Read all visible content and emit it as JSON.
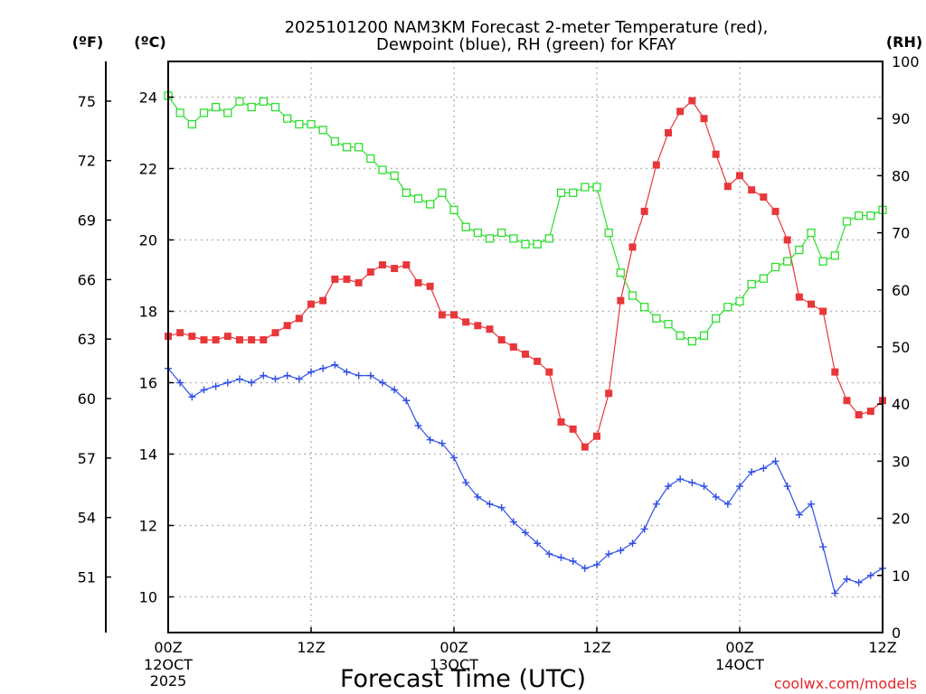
{
  "chart_data": {
    "type": "line",
    "title_line1": "2025101200 NAM3KM Forecast 2-meter Temperature (red),",
    "title_line2": "Dewpoint (blue), RH (green) for KFAY",
    "xlabel": "Forecast Time (UTC)",
    "credit": "coolwx.com/models",
    "units": {
      "fahrenheit": "(ºF)",
      "celsius": "(ºC)",
      "rh": "(RH)"
    },
    "x_unit": "forecast hour",
    "xlim": [
      0,
      60
    ],
    "celsius_ylim": [
      9,
      25
    ],
    "rh_ylim": [
      0,
      100
    ],
    "grid": true,
    "x_ticks": [
      {
        "hour": 0,
        "label": "00Z",
        "sub1": "12OCT",
        "sub2": "2025"
      },
      {
        "hour": 12,
        "label": "12Z",
        "sub1": "",
        "sub2": ""
      },
      {
        "hour": 24,
        "label": "00Z",
        "sub1": "13OCT",
        "sub2": ""
      },
      {
        "hour": 36,
        "label": "12Z",
        "sub1": "",
        "sub2": ""
      },
      {
        "hour": 48,
        "label": "00Z",
        "sub1": "14OCT",
        "sub2": ""
      },
      {
        "hour": 60,
        "label": "12Z",
        "sub1": "",
        "sub2": ""
      }
    ],
    "celsius_ticks": [
      "10",
      "12",
      "14",
      "16",
      "18",
      "20",
      "22",
      "24"
    ],
    "fahrenheit_ticks": [
      "51",
      "54",
      "57",
      "60",
      "63",
      "66",
      "69",
      "72",
      "75"
    ],
    "rh_ticks": [
      "0",
      "10",
      "20",
      "30",
      "40",
      "50",
      "60",
      "70",
      "80",
      "90",
      "100"
    ],
    "series": [
      {
        "name": "2-meter Temperature",
        "axis": "celsius",
        "color": "#e8373a",
        "marker": "filled-square",
        "values": [
          17.3,
          17.4,
          17.3,
          17.2,
          17.2,
          17.3,
          17.2,
          17.2,
          17.2,
          17.4,
          17.6,
          17.8,
          18.2,
          18.3,
          18.9,
          18.9,
          18.8,
          19.1,
          19.3,
          19.2,
          19.3,
          18.8,
          18.7,
          17.9,
          17.9,
          17.7,
          17.6,
          17.5,
          17.2,
          17.0,
          16.8,
          16.6,
          16.3,
          14.9,
          14.7,
          14.2,
          14.5,
          15.7,
          18.3,
          19.8,
          20.8,
          22.1,
          23.0,
          23.6,
          23.9,
          23.4,
          22.4,
          21.5,
          21.8,
          21.4,
          21.2,
          20.8,
          20.0,
          18.4,
          18.2,
          18.0,
          16.3,
          15.5,
          15.1,
          15.2,
          15.5
        ]
      },
      {
        "name": "Dewpoint",
        "axis": "celsius",
        "color": "#2f4fe6",
        "marker": "plus",
        "values": [
          16.4,
          16.0,
          15.6,
          15.8,
          15.9,
          16.0,
          16.1,
          16.0,
          16.2,
          16.1,
          16.2,
          16.1,
          16.3,
          16.4,
          16.5,
          16.3,
          16.2,
          16.2,
          16.0,
          15.8,
          15.5,
          14.8,
          14.4,
          14.3,
          13.9,
          13.2,
          12.8,
          12.6,
          12.5,
          12.1,
          11.8,
          11.5,
          11.2,
          11.1,
          11.0,
          10.8,
          10.9,
          11.2,
          11.3,
          11.5,
          11.9,
          12.6,
          13.1,
          13.3,
          13.2,
          13.1,
          12.8,
          12.6,
          13.1,
          13.5,
          13.6,
          13.8,
          13.1,
          12.3,
          12.6,
          11.4,
          10.1,
          10.5,
          10.4,
          10.6,
          10.8
        ]
      },
      {
        "name": "RH",
        "axis": "rh",
        "color": "#2ede2e",
        "marker": "open-square",
        "values": [
          94,
          91,
          89,
          91,
          92,
          91,
          93,
          92,
          93,
          92,
          90,
          89,
          89,
          88,
          86,
          85,
          85,
          83,
          81,
          80,
          77,
          76,
          75,
          77,
          74,
          71,
          70,
          69,
          70,
          69,
          68,
          68,
          69,
          77,
          77,
          78,
          78,
          70,
          63,
          59,
          57,
          55,
          54,
          52,
          51,
          52,
          55,
          57,
          58,
          61,
          62,
          64,
          65,
          67,
          70,
          65,
          66,
          72,
          73,
          73,
          74
        ]
      }
    ]
  }
}
